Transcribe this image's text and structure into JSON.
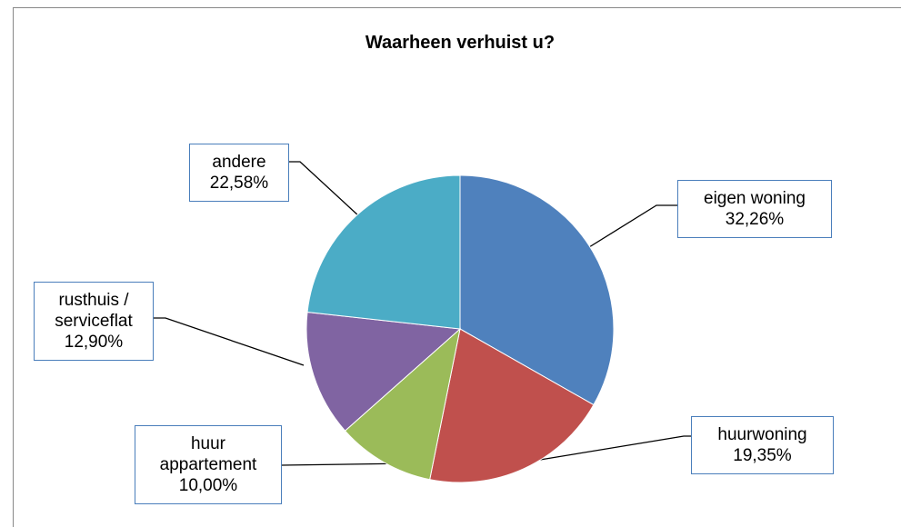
{
  "chart_data": {
    "type": "pie",
    "title": "Waarheen verhuist u?",
    "categories": [
      "eigen woning",
      "huurwoning",
      "huur appartement",
      "rusthuis / serviceflat",
      "andere"
    ],
    "values": [
      32.26,
      19.35,
      10.0,
      12.9,
      22.58
    ],
    "value_labels": [
      "32,26%",
      "19,35%",
      "10,00%",
      "12,90%",
      "22,58%"
    ],
    "colors": [
      "#4f81bd",
      "#c0504d",
      "#9bbb59",
      "#8064a2",
      "#4bacc6"
    ]
  }
}
